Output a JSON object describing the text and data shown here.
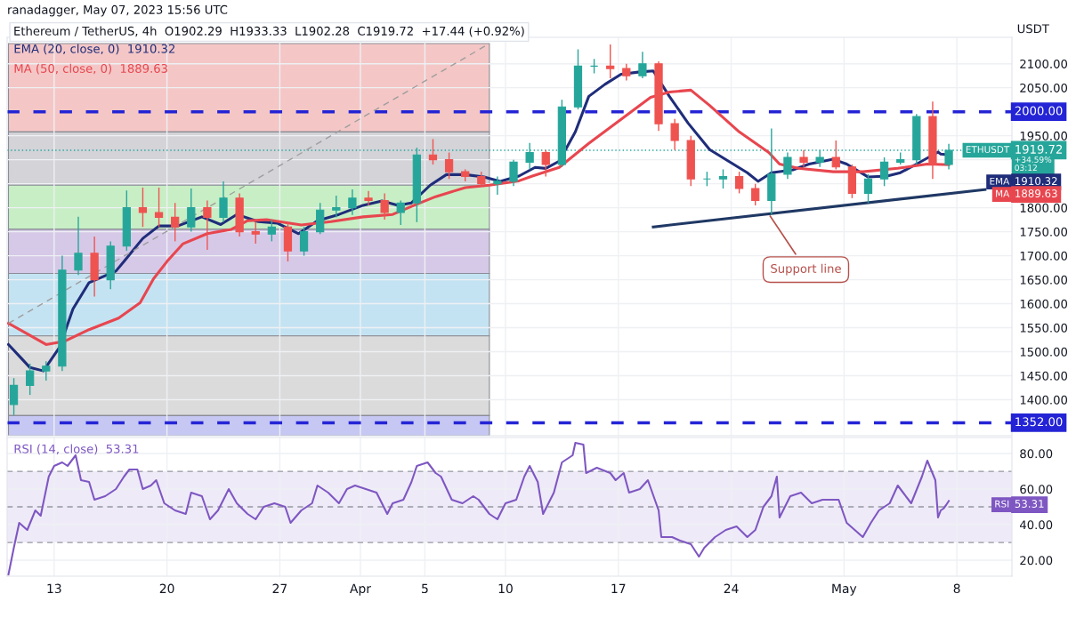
{
  "chart_data": [
    {
      "type": "candlestick",
      "subtitle": "ranadagger, May 07, 2023 15:56 UTC",
      "title": "Ethereum / TetherUS, 4h  O1902.29  H1933.33  L1902.28  C1919.72  +17.44 (+0.92%)",
      "ylabel": "USDT",
      "x": [
        "2023-03-10T12:00",
        "2023-03-11T12:00",
        "2023-03-12T12:00",
        "2023-03-13T12:00",
        "2023-03-14T12:00",
        "2023-03-15T12:00",
        "2023-03-16T12:00",
        "2023-03-17T12:00",
        "2023-03-18T12:00",
        "2023-03-19T12:00",
        "2023-03-20T12:00",
        "2023-03-21T12:00",
        "2023-03-22T12:00",
        "2023-03-23T12:00",
        "2023-03-24T12:00",
        "2023-03-25T12:00",
        "2023-03-26T12:00",
        "2023-03-27T12:00",
        "2023-03-28T12:00",
        "2023-03-29T12:00",
        "2023-03-30T12:00",
        "2023-03-31T12:00",
        "2023-04-01T12:00",
        "2023-04-02T12:00",
        "2023-04-03T12:00",
        "2023-04-04T12:00",
        "2023-04-05T12:00",
        "2023-04-06T12:00",
        "2023-04-07T12:00",
        "2023-04-08T12:00",
        "2023-04-09T12:00",
        "2023-04-10T12:00",
        "2023-04-11T12:00",
        "2023-04-12T12:00",
        "2023-04-13T12:00",
        "2023-04-14T12:00",
        "2023-04-15T12:00",
        "2023-04-16T12:00",
        "2023-04-17T12:00",
        "2023-04-18T12:00",
        "2023-04-19T12:00",
        "2023-04-20T12:00",
        "2023-04-21T12:00",
        "2023-04-22T12:00",
        "2023-04-23T12:00",
        "2023-04-24T12:00",
        "2023-04-25T12:00",
        "2023-04-26T12:00",
        "2023-04-27T12:00",
        "2023-04-28T12:00",
        "2023-04-29T12:00",
        "2023-04-30T12:00",
        "2023-05-01T12:00",
        "2023-05-02T12:00",
        "2023-05-03T12:00",
        "2023-05-04T12:00",
        "2023-05-05T12:00",
        "2023-05-06T12:00",
        "2023-05-07T12:00"
      ],
      "ohlc": [
        [
          1390,
          1445,
          1368,
          1430
        ],
        [
          1430,
          1475,
          1410,
          1460
        ],
        [
          1460,
          1480,
          1440,
          1470
        ],
        [
          1470,
          1700,
          1460,
          1670
        ],
        [
          1670,
          1781,
          1660,
          1705
        ],
        [
          1705,
          1740,
          1615,
          1650
        ],
        [
          1650,
          1730,
          1630,
          1720
        ],
        [
          1720,
          1836,
          1710,
          1800
        ],
        [
          1800,
          1842,
          1760,
          1790
        ],
        [
          1790,
          1842,
          1760,
          1780
        ],
        [
          1780,
          1810,
          1730,
          1760
        ],
        [
          1760,
          1840,
          1750,
          1800
        ],
        [
          1800,
          1815,
          1712,
          1780
        ],
        [
          1780,
          1855,
          1770,
          1820
        ],
        [
          1820,
          1830,
          1740,
          1750
        ],
        [
          1750,
          1770,
          1725,
          1745
        ],
        [
          1745,
          1775,
          1730,
          1760
        ],
        [
          1760,
          1770,
          1688,
          1710
        ],
        [
          1710,
          1760,
          1700,
          1750
        ],
        [
          1750,
          1810,
          1745,
          1795
        ],
        [
          1795,
          1825,
          1780,
          1800
        ],
        [
          1800,
          1838,
          1785,
          1820
        ],
        [
          1820,
          1835,
          1805,
          1815
        ],
        [
          1815,
          1830,
          1775,
          1790
        ],
        [
          1790,
          1815,
          1764,
          1810
        ],
        [
          1810,
          1925,
          1770,
          1910
        ],
        [
          1910,
          1943,
          1890,
          1900
        ],
        [
          1900,
          1915,
          1860,
          1875
        ],
        [
          1875,
          1880,
          1855,
          1865
        ],
        [
          1865,
          1875,
          1845,
          1850
        ],
        [
          1850,
          1865,
          1827,
          1855
        ],
        [
          1855,
          1900,
          1845,
          1895
        ],
        [
          1895,
          1935,
          1880,
          1915
        ],
        [
          1915,
          1920,
          1865,
          1890
        ],
        [
          1890,
          2025,
          1885,
          2010
        ],
        [
          2010,
          2130,
          2005,
          2095
        ],
        [
          2095,
          2110,
          2080,
          2095
        ],
        [
          2095,
          2140,
          2070,
          2090
        ],
        [
          2090,
          2100,
          2065,
          2075
        ],
        [
          2075,
          2125,
          2070,
          2100
        ],
        [
          2100,
          2105,
          1960,
          1975
        ],
        [
          1975,
          1985,
          1920,
          1940
        ],
        [
          1940,
          1950,
          1845,
          1860
        ],
        [
          1860,
          1875,
          1845,
          1860
        ],
        [
          1860,
          1880,
          1840,
          1865
        ],
        [
          1865,
          1875,
          1830,
          1840
        ],
        [
          1840,
          1850,
          1805,
          1815
        ],
        [
          1815,
          1965,
          1786,
          1870
        ],
        [
          1870,
          1915,
          1860,
          1905
        ],
        [
          1905,
          1920,
          1885,
          1895
        ],
        [
          1895,
          1920,
          1885,
          1905
        ],
        [
          1905,
          1940,
          1880,
          1885
        ],
        [
          1885,
          1890,
          1820,
          1830
        ],
        [
          1830,
          1870,
          1810,
          1860
        ],
        [
          1860,
          1905,
          1845,
          1895
        ],
        [
          1895,
          1915,
          1890,
          1900
        ],
        [
          1900,
          1995,
          1890,
          1990
        ],
        [
          1990,
          2021,
          1860,
          1890
        ],
        [
          1890,
          1933,
          1880,
          1919.72
        ]
      ],
      "colors": [
        "#26a69a",
        "#26a69a",
        "#26a69a",
        "#26a69a",
        "#26a69a",
        "#ef5350",
        "#26a69a",
        "#26a69a",
        "#ef5350",
        "#ef5350",
        "#ef5350",
        "#26a69a",
        "#ef5350",
        "#26a69a",
        "#ef5350",
        "#ef5350",
        "#26a69a",
        "#ef5350",
        "#26a69a",
        "#26a69a",
        "#26a69a",
        "#26a69a",
        "#ef5350",
        "#ef5350",
        "#26a69a",
        "#26a69a",
        "#ef5350",
        "#ef5350",
        "#ef5350",
        "#ef5350",
        "#26a69a",
        "#26a69a",
        "#26a69a",
        "#ef5350",
        "#26a69a",
        "#26a69a",
        "#26a69a",
        "#ef5350",
        "#ef5350",
        "#26a69a",
        "#ef5350",
        "#ef5350",
        "#ef5350",
        "#26a69a",
        "#26a69a",
        "#ef5350",
        "#ef5350",
        "#26a69a",
        "#26a69a",
        "#ef5350",
        "#26a69a",
        "#ef5350",
        "#ef5350",
        "#26a69a",
        "#26a69a",
        "#26a69a",
        "#26a69a",
        "#ef5350",
        "#26a69a"
      ],
      "series": [
        {
          "name": "EMA (20, close, 0)",
          "type": "line",
          "color": "#1f2d7a",
          "x": [
            "2023-03-10T04:00",
            "2023-03-10T20:00",
            "2023-03-11T12:00",
            "2023-03-12T08:00",
            "2023-03-13T08:00",
            "2023-03-14T04:00",
            "2023-03-15T04:00",
            "2023-03-16T20:00",
            "2023-03-17T08:00",
            "2023-03-18T12:00",
            "2023-03-19T12:00",
            "2023-03-20T16:00",
            "2023-03-22T04:00",
            "2023-03-23T08:00",
            "2023-03-24T08:00",
            "2023-03-25T16:00",
            "2023-03-26T20:00",
            "2023-03-28T04:00",
            "2023-03-29T08:00",
            "2023-03-30T16:00",
            "2023-04-01T04:00",
            "2023-04-02T08:00",
            "2023-04-03T08:00",
            "2023-04-04T04:00",
            "2023-04-05T08:00",
            "2023-04-06T08:00",
            "2023-04-07T12:00",
            "2023-04-08T16:00",
            "2023-04-09T16:00",
            "2023-04-10T20:00",
            "2023-04-11T20:00",
            "2023-04-12T12:00",
            "2023-04-13T08:00",
            "2023-04-14T08:00",
            "2023-04-15T04:00",
            "2023-04-16T04:00",
            "2023-04-17T04:00",
            "2023-04-18T08:00",
            "2023-04-19T04:00",
            "2023-04-20T04:00",
            "2023-04-21T08:00",
            "2023-04-22T16:00",
            "2023-04-23T20:00",
            "2023-04-25T00:00",
            "2023-04-25T16:00",
            "2023-04-26T12:00",
            "2023-04-27T20:00",
            "2023-04-28T20:00",
            "2023-04-30T08:00",
            "2023-05-01T04:00",
            "2023-05-02T12:00",
            "2023-05-03T16:00",
            "2023-05-04T12:00",
            "2023-05-05T12:00",
            "2023-05-06T20:00",
            "2023-05-07T00:00",
            "2023-05-07T12:00"
          ],
          "values": [
            1515,
            1491,
            1467,
            1460,
            1509,
            1589,
            1644,
            1668,
            1688,
            1736,
            1762,
            1762,
            1781,
            1765,
            1786,
            1771,
            1768,
            1746,
            1773,
            1786,
            1805,
            1814,
            1805,
            1810,
            1847,
            1869,
            1869,
            1864,
            1855,
            1866,
            1884,
            1882,
            1897,
            1958,
            2032,
            2057,
            2078,
            2083,
            2085,
            2032,
            1976,
            1921,
            1897,
            1873,
            1855,
            1873,
            1879,
            1891,
            1901,
            1891,
            1864,
            1866,
            1873,
            1891,
            1916,
            1912,
            1910.32
          ]
        },
        {
          "name": "MA (50, close, 0)",
          "type": "line",
          "color": "#e8464f",
          "x": [
            "2023-03-10T04:00",
            "2023-03-11T12:00",
            "2023-03-12T12:00",
            "2023-03-13T16:00",
            "2023-03-15T04:00",
            "2023-03-17T00:00",
            "2023-03-18T08:00",
            "2023-03-19T04:00",
            "2023-03-20T00:00",
            "2023-03-21T00:00",
            "2023-03-22T12:00",
            "2023-03-24T00:00",
            "2023-03-25T00:00",
            "2023-03-26T04:00",
            "2023-03-28T08:00",
            "2023-03-30T04:00",
            "2023-04-01T04:00",
            "2023-04-03T00:00",
            "2023-04-04T08:00",
            "2023-04-05T16:00",
            "2023-04-07T12:00",
            "2023-04-09T00:00",
            "2023-04-10T20:00",
            "2023-04-11T16:00",
            "2023-04-13T08:00",
            "2023-04-15T04:00",
            "2023-04-17T04:00",
            "2023-04-19T00:00",
            "2023-04-20T04:00",
            "2023-04-21T12:00",
            "2023-04-22T16:00",
            "2023-04-24T12:00",
            "2023-04-26T08:00",
            "2023-04-27T00:00",
            "2023-04-28T04:00",
            "2023-04-30T08:00",
            "2023-05-02T04:00",
            "2023-05-04T08:00",
            "2023-05-06T04:00",
            "2023-05-07T12:00"
          ],
          "values": [
            1559,
            1534,
            1515,
            1522,
            1546,
            1570,
            1602,
            1652,
            1688,
            1725,
            1746,
            1755,
            1773,
            1775,
            1764,
            1771,
            1781,
            1786,
            1805,
            1823,
            1842,
            1847,
            1856,
            1866,
            1884,
            1934,
            1984,
            2030,
            2041,
            2045,
            2013,
            1958,
            1915,
            1891,
            1882,
            1875,
            1875,
            1882,
            1891,
            1889.63
          ]
        },
        {
          "type": "line",
          "color": "#9e9e9e",
          "line_style": "dashed",
          "x": [
            "2023-03-10T04:00",
            "2023-04-09T00:00"
          ],
          "values": [
            1559,
            2142
          ]
        },
        {
          "type": "line",
          "color": "#1f3864",
          "x": [
            "2023-04-19T04:00",
            "2023-05-09T18:00"
          ],
          "values": [
            1760,
            1838
          ]
        }
      ],
      "ylim": [
        1325,
        2155
      ],
      "yticks": [
        {
          "value": 1400,
          "label": "1400.00"
        },
        {
          "value": 1450,
          "label": "1450.00"
        },
        {
          "value": 1500,
          "label": "1500.00"
        },
        {
          "value": 1550,
          "label": "1550.00"
        },
        {
          "value": 1600,
          "label": "1600.00"
        },
        {
          "value": 1650,
          "label": "1650.00"
        },
        {
          "value": 1700,
          "label": "1700.00"
        },
        {
          "value": 1750,
          "label": "1750.00"
        },
        {
          "value": 1800,
          "label": "1800.00"
        },
        {
          "value": 1850,
          "label": null
        },
        {
          "value": 1900,
          "label": null
        },
        {
          "value": 1950,
          "label": "1950.00"
        },
        {
          "value": 2050,
          "label": "2050.00"
        },
        {
          "value": 2100,
          "label": "2100.00"
        }
      ],
      "xlim": [
        "2023-03-10T02:00",
        "2023-05-11T10:00"
      ],
      "xticks": [
        {
          "value": "2023-03-13",
          "label": null
        },
        {
          "value": "2023-03-20",
          "label": null
        },
        {
          "value": "2023-03-27",
          "label": null
        },
        {
          "value": "2023-04-01",
          "label": null
        },
        {
          "value": "2023-04-05",
          "label": null
        },
        {
          "value": "2023-04-10",
          "label": null
        },
        {
          "value": "2023-04-17",
          "label": null
        },
        {
          "value": "2023-04-24",
          "label": null
        },
        {
          "value": "2023-05-01",
          "label": null
        },
        {
          "value": "2023-05-08",
          "label": null
        }
      ],
      "tick_labels": "y",
      "grid": true,
      "legend": "top left",
      "ref_lines": [
        {
          "axis": "y",
          "value": 2000,
          "label": "2000.00",
          "color": "#2424d6",
          "line_style": "dashed"
        },
        {
          "axis": "y",
          "value": 1352,
          "label": "1352.00",
          "color": "#2424d6",
          "line_style": "dashed"
        },
        {
          "axis": "y",
          "value": 1919.72,
          "label": "1919.72",
          "color": "#26a69a",
          "line_style": "dotted"
        }
      ],
      "bands": [
        {
          "axis": "y",
          "from": 1958,
          "to": 2142,
          "color": "#f4c7c6"
        },
        {
          "axis": "y",
          "from": 1847,
          "to": 1958,
          "color": "#d3d3d8"
        },
        {
          "axis": "y",
          "from": 1755,
          "to": 1847,
          "color": "#c8eec5"
        },
        {
          "axis": "y",
          "from": 1663,
          "to": 1755,
          "color": "#d6c9e8"
        },
        {
          "axis": "y",
          "from": 1533,
          "to": 1663,
          "color": "#c4e3f2"
        },
        {
          "axis": "y",
          "from": 1367,
          "to": 1533,
          "color": "#dbdbdb"
        },
        {
          "axis": "y",
          "from": 1325,
          "to": 1367,
          "color": "#c6c7f2"
        }
      ],
      "annotations": [
        {
          "text": "Support line",
          "x": "2023-04-26T08:00",
          "y": 1787
        },
        "ETHUSDT",
        "+34.59%\n03:12",
        "EMA",
        "1910.32",
        "MA",
        "1889.63",
        "1910.32",
        "1889.63"
      ]
    },
    {
      "type": "line",
      "x": [
        "2023-03-10T04:00",
        "2023-03-10T12:00",
        "2023-03-10T20:00",
        "2023-03-11T08:00",
        "2023-03-11T20:00",
        "2023-03-12T04:00",
        "2023-03-12T16:00",
        "2023-03-13T00:00",
        "2023-03-13T12:00",
        "2023-03-13T20:00",
        "2023-03-14T08:00",
        "2023-03-14T16:00",
        "2023-03-15T04:00",
        "2023-03-15T12:00",
        "2023-03-16T04:00",
        "2023-03-16T20:00",
        "2023-03-17T08:00",
        "2023-03-17T16:00",
        "2023-03-18T04:00",
        "2023-03-18T12:00",
        "2023-03-19T00:00",
        "2023-03-19T08:00",
        "2023-03-19T20:00",
        "2023-03-20T12:00",
        "2023-03-21T04:00",
        "2023-03-21T12:00",
        "2023-03-22T04:00",
        "2023-03-22T16:00",
        "2023-03-23T04:00",
        "2023-03-23T20:00",
        "2023-03-24T08:00",
        "2023-03-25T00:00",
        "2023-03-25T12:00",
        "2023-03-26T00:00",
        "2023-03-26T16:00",
        "2023-03-27T08:00",
        "2023-03-27T16:00",
        "2023-03-28T08:00",
        "2023-03-29T00:00",
        "2023-03-29T08:00",
        "2023-03-30T00:00",
        "2023-03-30T16:00",
        "2023-03-31T04:00",
        "2023-03-31T16:00",
        "2023-04-01T08:00",
        "2023-04-02T00:00",
        "2023-04-02T16:00",
        "2023-04-03T00:00",
        "2023-04-03T16:00",
        "2023-04-04T04:00",
        "2023-04-04T12:00",
        "2023-04-05T04:00",
        "2023-04-05T16:00",
        "2023-04-06T00:00",
        "2023-04-06T16:00",
        "2023-04-07T08:00",
        "2023-04-08T00:00",
        "2023-04-08T08:00",
        "2023-04-09T00:00",
        "2023-04-09T12:00",
        "2023-04-10T00:00",
        "2023-04-10T16:00",
        "2023-04-11T04:00",
        "2023-04-11T12:00",
        "2023-04-12T00:00",
        "2023-04-12T08:00",
        "2023-04-13T00:00",
        "2023-04-13T12:00",
        "2023-04-14T04:00",
        "2023-04-14T08:00",
        "2023-04-14T20:00",
        "2023-04-15T00:00",
        "2023-04-15T16:00",
        "2023-04-16T12:00",
        "2023-04-16T20:00",
        "2023-04-17T08:00",
        "2023-04-17T16:00",
        "2023-04-18T08:00",
        "2023-04-18T20:00",
        "2023-04-19T12:00",
        "2023-04-19T16:00",
        "2023-04-20T08:00",
        "2023-04-20T20:00",
        "2023-04-21T12:00",
        "2023-04-22T00:00",
        "2023-04-22T08:00",
        "2023-04-23T00:00",
        "2023-04-23T16:00",
        "2023-04-24T08:00",
        "2023-04-25T00:00",
        "2023-04-25T12:00",
        "2023-04-26T00:00",
        "2023-04-26T12:00",
        "2023-04-26T20:00",
        "2023-04-27T00:00",
        "2023-04-27T16:00",
        "2023-04-28T08:00",
        "2023-04-29T00:00",
        "2023-04-29T16:00",
        "2023-04-30T08:00",
        "2023-04-30T16:00",
        "2023-05-01T04:00",
        "2023-05-01T16:00",
        "2023-05-02T04:00",
        "2023-05-02T16:00",
        "2023-05-03T04:00",
        "2023-05-03T20:00",
        "2023-05-04T08:00",
        "2023-05-04T16:00",
        "2023-05-05T04:00",
        "2023-05-05T20:00",
        "2023-05-06T04:00",
        "2023-05-06T16:00",
        "2023-05-06T20:00",
        "2023-05-07T00:00",
        "2023-05-07T04:00",
        "2023-05-07T08:00",
        "2023-05-07T12:00"
      ],
      "series": [
        {
          "name": "RSI (14, close)",
          "color": "#7e57c2",
          "values": [
            12,
            27,
            41,
            37,
            48,
            45,
            67,
            73,
            75,
            73,
            79,
            65,
            64,
            54,
            56,
            60,
            67,
            71,
            71,
            60,
            62,
            65,
            52,
            48,
            46,
            58,
            56,
            43,
            48,
            60,
            52,
            46,
            43,
            50,
            52,
            50,
            41,
            48,
            52,
            62,
            58,
            52,
            60,
            62,
            60,
            58,
            46,
            52,
            54,
            64,
            73,
            75,
            69,
            67,
            54,
            52,
            56,
            54,
            46,
            43,
            52,
            54,
            67,
            73,
            64,
            46,
            58,
            75,
            79,
            86,
            85,
            69,
            72,
            69,
            65,
            69,
            58,
            60,
            65,
            48,
            33,
            33,
            31,
            29,
            22,
            27,
            33,
            37,
            39,
            33,
            37,
            50,
            56,
            67,
            44,
            56,
            58,
            52,
            54,
            54,
            54,
            41,
            37,
            33,
            41,
            48,
            52,
            62,
            58,
            52,
            67,
            76,
            65,
            44,
            48,
            49,
            51,
            53.31
          ]
        }
      ],
      "ylim": [
        11,
        89
      ],
      "yticks": [
        {
          "value": 20,
          "label": "20.00"
        },
        {
          "value": 40,
          "label": "40.00"
        },
        {
          "value": 60,
          "label": "60.00"
        },
        {
          "value": 80,
          "label": "80.00"
        }
      ],
      "xlim": [
        "2023-03-10T02:00",
        "2023-05-11T10:00"
      ],
      "xticks": [
        {
          "value": "2023-03-13",
          "label": "13"
        },
        {
          "value": "2023-03-20",
          "label": "20"
        },
        {
          "value": "2023-03-27",
          "label": "27"
        },
        {
          "value": "2023-04-01",
          "label": "Apr"
        },
        {
          "value": "2023-04-05",
          "label": "5"
        },
        {
          "value": "2023-04-10",
          "label": "10"
        },
        {
          "value": "2023-04-17",
          "label": "17"
        },
        {
          "value": "2023-04-24",
          "label": "24"
        },
        {
          "value": "2023-05-01",
          "label": "May"
        },
        {
          "value": "2023-05-08",
          "label": "8"
        }
      ],
      "grid": true,
      "legend": "top left",
      "ref_lines": [
        {
          "axis": "y",
          "value": 70,
          "color": "#9598a1",
          "line_style": "dashed"
        },
        {
          "axis": "y",
          "value": 50,
          "color": "#9598a1",
          "line_style": "dashed"
        },
        {
          "axis": "y",
          "value": 30,
          "color": "#9598a1",
          "line_style": "dashed"
        }
      ],
      "bands": [
        {
          "axis": "y",
          "from": 30,
          "to": 70,
          "color": "#efeaf8"
        }
      ],
      "annotations": [
        "RSI",
        "53.31",
        "53.31"
      ]
    }
  ]
}
